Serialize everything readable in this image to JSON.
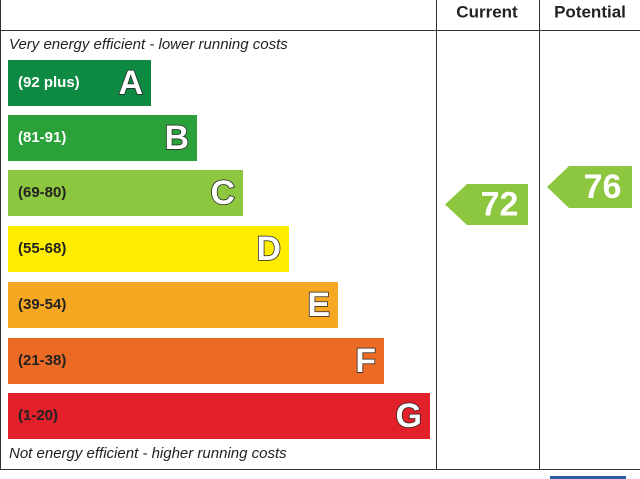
{
  "chart_data": {
    "type": "epc",
    "columns": [
      "Current",
      "Potential"
    ],
    "top_note": "Very energy efficient - lower running costs",
    "bottom_note": "Not energy efficient - higher running costs",
    "bands": [
      {
        "range": "(92 plus)",
        "letter": "A",
        "color": "#0f8a43",
        "text_color": "#ffffff"
      },
      {
        "range": "(81-91)",
        "letter": "B",
        "color": "#2aa139",
        "text_color": "#ffffff"
      },
      {
        "range": "(69-80)",
        "letter": "C",
        "color": "#8dc63f",
        "text_color": "#222222"
      },
      {
        "range": "(55-68)",
        "letter": "D",
        "color": "#ffed00",
        "text_color": "#222222"
      },
      {
        "range": "(39-54)",
        "letter": "E",
        "color": "#f7a823",
        "text_color": "#222222"
      },
      {
        "range": "(21-38)",
        "letter": "F",
        "color": "#ec6b24",
        "text_color": "#222222"
      },
      {
        "range": "(1-20)",
        "letter": "G",
        "color": "#e2202a",
        "text_color": "#222222"
      }
    ],
    "current": {
      "value": 72,
      "color": "#8dc63f"
    },
    "potential": {
      "value": 76,
      "color": "#8dc63f"
    }
  }
}
